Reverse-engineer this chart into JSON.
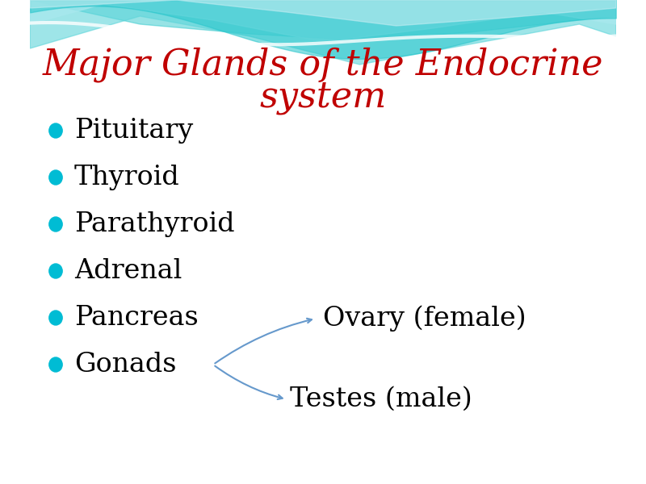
{
  "title_line1": "Major Glands of the Endocrine",
  "title_line2": "system",
  "title_color": "#c00000",
  "title_fontsize": 32,
  "bullet_color": "#00bcd4",
  "bullet_items": [
    "Pituitary",
    "Thyroid",
    "Parathyroid",
    "Adrenal",
    "Pancreas",
    "Gonads"
  ],
  "text_color": "#000000",
  "text_fontsize": 24,
  "ovary_text": "Ovary (female)",
  "testes_text": "Testes (male)",
  "arrow_color": "#6699cc",
  "bg_color": "#ffffff",
  "wave_color1": "#40d0d0",
  "wave_color2": "#80e0e8"
}
